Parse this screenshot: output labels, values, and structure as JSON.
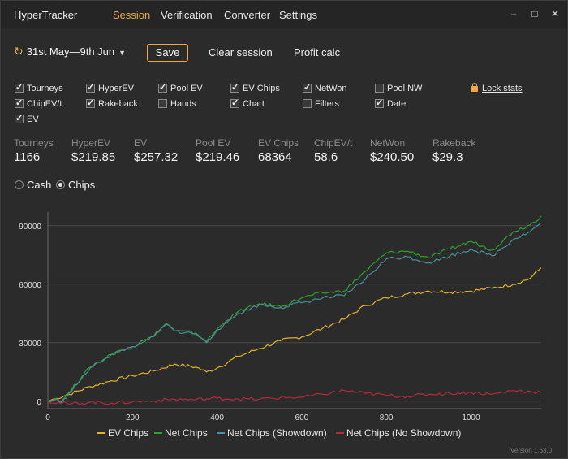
{
  "app": {
    "title": "HyperTracker"
  },
  "menu": [
    "Session",
    "Verification",
    "Converter",
    "Settings"
  ],
  "window_controls": {
    "minimize": "–",
    "maximize": "□",
    "close": "✕"
  },
  "toolbar": {
    "date_range": "31st May—9th Jun",
    "save": "Save",
    "clear": "Clear session",
    "profit": "Profit calc"
  },
  "checkboxes": [
    {
      "label": "Tourneys",
      "checked": true
    },
    {
      "label": "HyperEV",
      "checked": true
    },
    {
      "label": "Pool EV",
      "checked": true
    },
    {
      "label": "EV Chips",
      "checked": true
    },
    {
      "label": "NetWon",
      "checked": true
    },
    {
      "label": "Pool NW",
      "checked": false
    },
    {
      "label": "ChipEV/t",
      "checked": true
    },
    {
      "label": "Rakeback",
      "checked": true
    },
    {
      "label": "Hands",
      "checked": false
    },
    {
      "label": "Chart",
      "checked": true
    },
    {
      "label": "Filters",
      "checked": false
    },
    {
      "label": "Date",
      "checked": true
    },
    {
      "label": "EV",
      "checked": true
    }
  ],
  "lock_stats": "Lock stats",
  "stats": [
    {
      "label": "Tourneys",
      "value": "1166"
    },
    {
      "label": "HyperEV",
      "value": "$219.85"
    },
    {
      "label": "EV",
      "value": "$257.32"
    },
    {
      "label": "Pool EV",
      "value": "$219.46"
    },
    {
      "label": "EV Chips",
      "value": "68364"
    },
    {
      "label": "ChipEV/t",
      "value": "58.6"
    },
    {
      "label": "NetWon",
      "value": "$240.50"
    },
    {
      "label": "Rakeback",
      "value": "$29.3"
    }
  ],
  "mode": {
    "cash": "Cash",
    "chips": "Chips",
    "selected": "chips"
  },
  "colors": {
    "accent": "#e8a94a",
    "ev_chips": "#e0b22c",
    "net_chips": "#2ea02e",
    "showdown": "#4a8f9a",
    "no_showdown": "#b02c3c"
  },
  "chart_data": {
    "type": "line",
    "x_ticks": [
      0,
      200,
      400,
      600,
      800,
      1000
    ],
    "y_ticks": [
      0,
      30000,
      60000,
      90000
    ],
    "xlim": [
      0,
      1166
    ],
    "ylim": [
      -3000,
      97000
    ],
    "grid": true,
    "legend_position": "bottom",
    "series": [
      {
        "name": "EV Chips",
        "color": "#e0b22c",
        "x": [
          0,
          20,
          50,
          100,
          150,
          200,
          250,
          300,
          350,
          375,
          400,
          450,
          500,
          550,
          600,
          650,
          700,
          750,
          800,
          850,
          900,
          950,
          1000,
          1050,
          1100,
          1140,
          1166
        ],
        "y": [
          0,
          1500,
          3500,
          7500,
          10500,
          13000,
          15500,
          19000,
          17500,
          15000,
          17000,
          23000,
          27000,
          31000,
          33000,
          37500,
          42000,
          49000,
          53000,
          55000,
          56500,
          56000,
          56500,
          58000,
          60000,
          63000,
          68364
        ]
      },
      {
        "name": "Net Chips",
        "color": "#2ea02e",
        "x": [
          0,
          20,
          30,
          50,
          100,
          150,
          200,
          250,
          280,
          300,
          350,
          375,
          400,
          450,
          500,
          550,
          600,
          650,
          700,
          750,
          800,
          850,
          900,
          950,
          1000,
          1050,
          1100,
          1140,
          1166
        ],
        "y": [
          0,
          1500,
          -500,
          4500,
          17500,
          24000,
          28000,
          33500,
          40000,
          36000,
          35000,
          30500,
          37000,
          46000,
          50000,
          48500,
          53000,
          55500,
          56500,
          66500,
          76000,
          77000,
          73500,
          78000,
          82000,
          77500,
          87000,
          90500,
          95000
        ]
      },
      {
        "name": "Net Chips (Showdown)",
        "color": "#4a8f9a",
        "x": [
          0,
          20,
          30,
          50,
          100,
          150,
          200,
          250,
          280,
          300,
          350,
          375,
          400,
          450,
          500,
          550,
          600,
          650,
          700,
          750,
          800,
          850,
          900,
          950,
          1000,
          1050,
          1100,
          1140,
          1166
        ],
        "y": [
          0,
          1000,
          -1000,
          4000,
          17000,
          24000,
          28000,
          33000,
          39500,
          36000,
          34500,
          30000,
          36500,
          45000,
          49500,
          48000,
          50500,
          53000,
          54000,
          62500,
          73000,
          74000,
          71000,
          74500,
          78000,
          74500,
          83000,
          87000,
          91500
        ]
      },
      {
        "name": "Net Chips (No Showdown)",
        "color": "#b02c3c",
        "x": [
          0,
          50,
          100,
          150,
          200,
          250,
          300,
          350,
          400,
          450,
          500,
          550,
          600,
          650,
          700,
          750,
          800,
          850,
          900,
          950,
          1000,
          1050,
          1100,
          1140,
          1166
        ],
        "y": [
          0,
          -1500,
          -500,
          -1000,
          -300,
          200,
          1000,
          800,
          1500,
          1200,
          1000,
          1800,
          2000,
          3500,
          5500,
          4000,
          3000,
          2500,
          3500,
          4000,
          4500,
          3500,
          5500,
          5000,
          4500
        ]
      }
    ]
  },
  "version": "Version 1.63.0"
}
